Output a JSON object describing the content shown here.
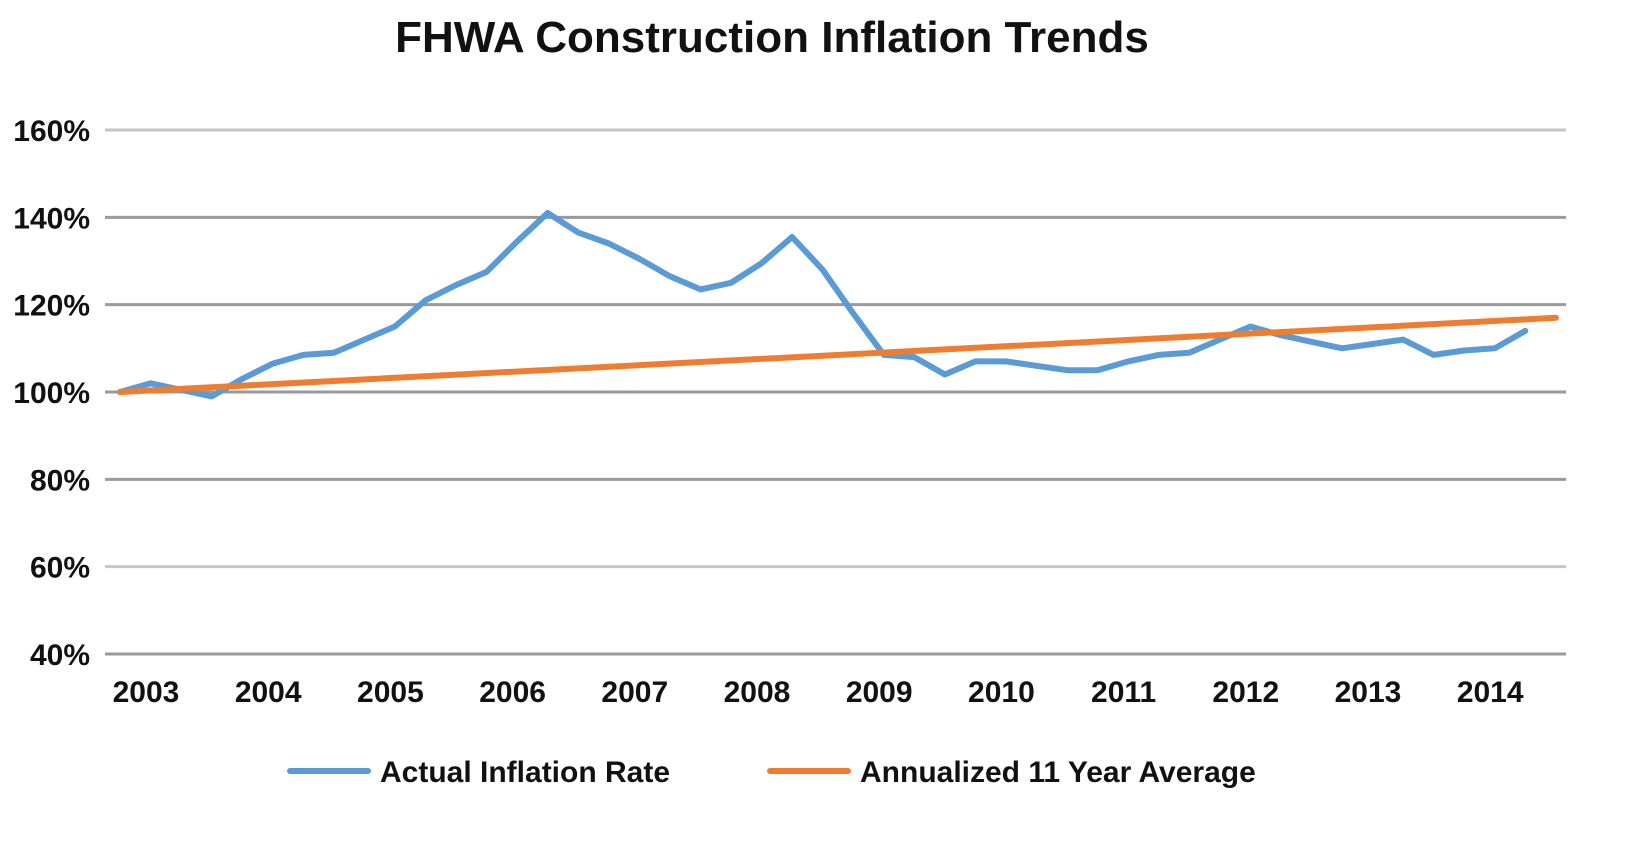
{
  "chart_data": {
    "type": "line",
    "title": "FHWA Construction Inflation Trends",
    "xlabel": "",
    "ylabel": "",
    "x_ticks": [
      "2003",
      "2004",
      "2005",
      "2006",
      "2007",
      "2008",
      "2009",
      "2010",
      "2011",
      "2012",
      "2013",
      "2014"
    ],
    "y_ticks": [
      "40%",
      "60%",
      "80%",
      "100%",
      "120%",
      "140%",
      "160%"
    ],
    "ylim": [
      40,
      160
    ],
    "xlim": [
      2003,
      2014.75
    ],
    "grid": true,
    "legend_position": "bottom",
    "series": [
      {
        "name": "Actual Inflation Rate",
        "color": "#5B9BD5",
        "x": [
          2003.0,
          2003.25,
          2003.5,
          2003.75,
          2004.0,
          2004.25,
          2004.5,
          2004.75,
          2005.0,
          2005.25,
          2005.5,
          2005.75,
          2006.0,
          2006.25,
          2006.5,
          2006.75,
          2007.0,
          2007.25,
          2007.5,
          2007.75,
          2008.0,
          2008.25,
          2008.5,
          2008.75,
          2009.0,
          2009.25,
          2009.5,
          2009.75,
          2010.0,
          2010.25,
          2010.5,
          2010.75,
          2011.0,
          2011.25,
          2011.5,
          2011.75,
          2012.0,
          2012.25,
          2012.5,
          2012.75,
          2013.0,
          2013.25,
          2013.5,
          2013.75,
          2014.0,
          2014.25,
          2014.5
        ],
        "values": [
          100,
          102,
          100.5,
          99,
          103,
          106.5,
          108.5,
          109,
          112,
          115,
          121,
          124.5,
          127.5,
          134.5,
          141,
          136.5,
          134,
          130.5,
          126.5,
          123.5,
          125,
          129.5,
          135.5,
          128,
          118,
          108.5,
          108,
          104,
          107,
          107,
          106,
          105,
          105,
          107,
          108.5,
          109,
          112,
          115,
          113,
          111.5,
          110,
          111,
          112,
          108.5,
          109.5,
          110,
          114
        ]
      },
      {
        "name": "Annualized 11 Year Average",
        "color": "#ED7D31",
        "x": [
          2003.0,
          2014.75
        ],
        "values": [
          100,
          117
        ]
      }
    ],
    "colors": {
      "grid_major": "#9a9a9a",
      "grid_light": "#c6c6c6"
    }
  }
}
